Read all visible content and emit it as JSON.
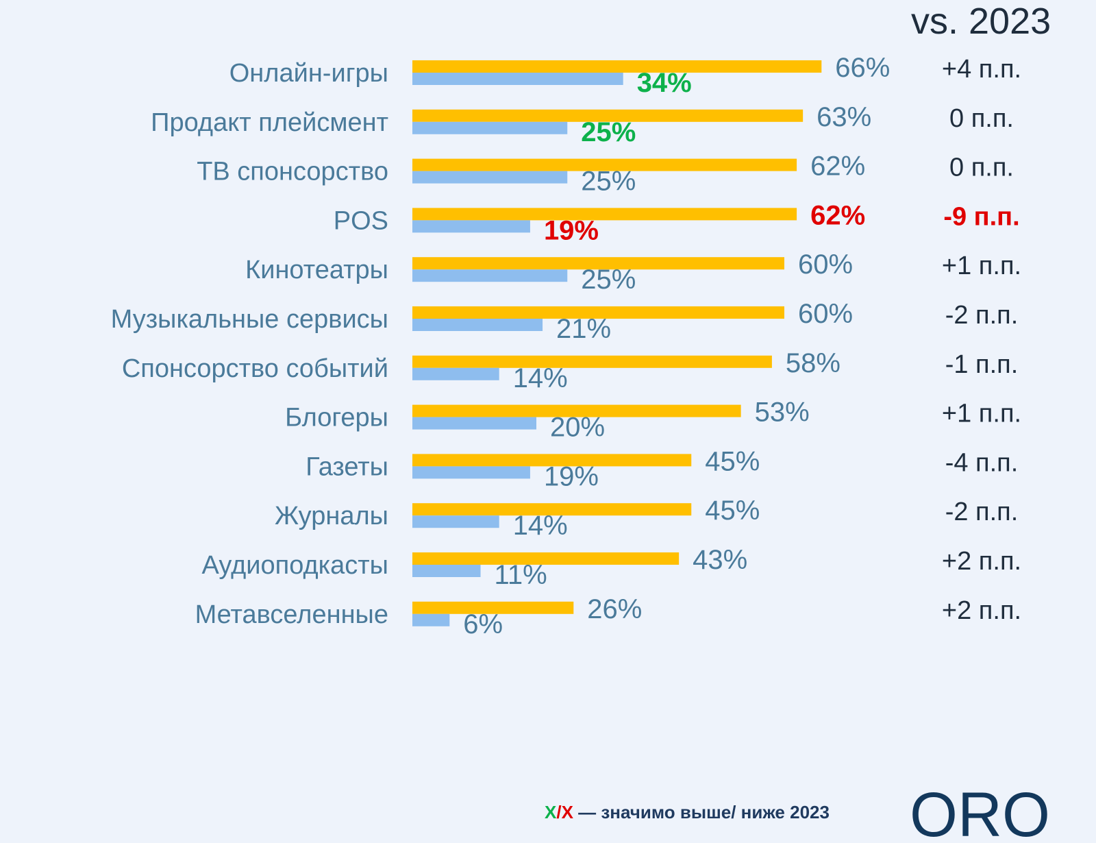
{
  "header": {
    "vs_label": "vs. 2023"
  },
  "chart_data": {
    "type": "bar",
    "orientation": "horizontal",
    "categories": [
      "Онлайн-игры",
      "Продакт плейсмент",
      "ТВ спонсорство",
      "POS",
      "Кинотеатры",
      "Музыкальные сервисы",
      "Спонсорство событий",
      "Блогеры",
      "Газеты",
      "Журналы",
      "Аудиоподкасты",
      "Метавселенные"
    ],
    "series": [
      {
        "color": "#FFBF00",
        "values": [
          66,
          63,
          62,
          62,
          60,
          60,
          58,
          53,
          45,
          45,
          43,
          26
        ],
        "labels": [
          "66%",
          "63%",
          "62%",
          "62%",
          "60%",
          "60%",
          "58%",
          "53%",
          "45%",
          "45%",
          "43%",
          "26%"
        ],
        "flags": [
          "",
          "",
          "",
          "down",
          "",
          "",
          "",
          "",
          "",
          "",
          "",
          ""
        ]
      },
      {
        "color": "#8EBDEE",
        "values": [
          34,
          25,
          25,
          19,
          25,
          21,
          14,
          20,
          19,
          14,
          11,
          6
        ],
        "labels": [
          "34%",
          "25%",
          "25%",
          "19%",
          "25%",
          "21%",
          "14%",
          "20%",
          "19%",
          "14%",
          "11%",
          "6%"
        ],
        "flags": [
          "up",
          "up",
          "",
          "down",
          "",
          "",
          "",
          "",
          "",
          "",
          "",
          ""
        ]
      }
    ],
    "changes": [
      "+4 п.п.",
      "0 п.п.",
      "0 п.п.",
      "-9 п.п.",
      "+1 п.п.",
      "-2 п.п.",
      "-1 п.п.",
      "+1 п.п.",
      "-4 п.п.",
      "-2 п.п.",
      "+2 п.п.",
      "+2 п.п."
    ],
    "change_flags": [
      "",
      "",
      "",
      "down",
      "",
      "",
      "",
      "",
      "",
      "",
      "",
      ""
    ],
    "colors": {
      "up": "#0DB14B",
      "down": "#E00000",
      "label": "#4A7A9A",
      "change": "#1F2D3D"
    }
  },
  "footnote": {
    "mark_up": "Х",
    "slash": "/",
    "mark_down": "Х",
    "text": " — значимо выше/ ниже 2023"
  },
  "logo": {
    "text": "ORO"
  }
}
